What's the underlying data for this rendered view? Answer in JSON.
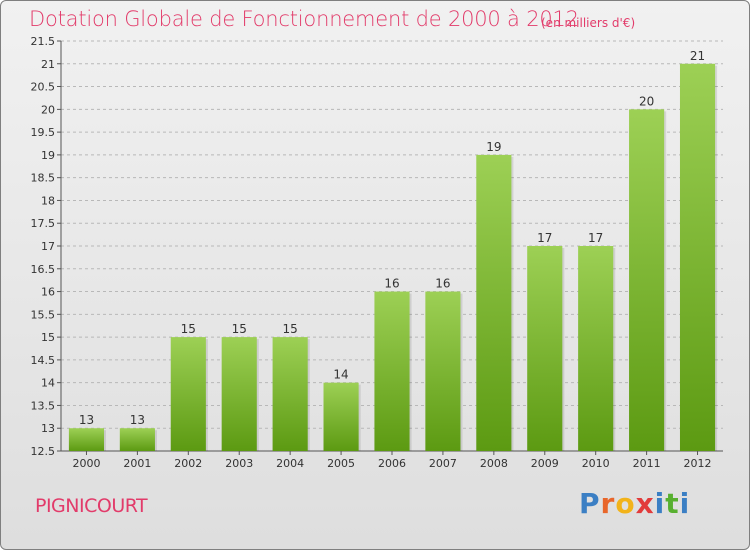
{
  "header": {
    "title": "Dotation Globale de Fonctionnement de 2000 à 2012",
    "subtitle": "(en milliers d'€)"
  },
  "footer": {
    "commune": "PIGNICOURT",
    "logo_letters": [
      "P",
      "r",
      "o",
      "x",
      "i",
      "t",
      "i"
    ]
  },
  "colors": {
    "title": "#e23b6a",
    "bar_top": "#9dd055",
    "bar_bottom": "#5c9a12",
    "logo": [
      "#3b7fc4",
      "#e8662a",
      "#f2b31a",
      "#e23b3b",
      "#3b7fc4",
      "#58b030",
      "#3b7fc4"
    ]
  },
  "chart_data": {
    "type": "bar",
    "title": "Dotation Globale de Fonctionnement de 2000 à 2012",
    "subtitle": "(en milliers d'€)",
    "categories": [
      "2000",
      "2001",
      "2002",
      "2003",
      "2004",
      "2005",
      "2006",
      "2007",
      "2008",
      "2009",
      "2010",
      "2011",
      "2012"
    ],
    "values": [
      13,
      13,
      15,
      15,
      15,
      14,
      16,
      16,
      19,
      17,
      17,
      20,
      21
    ],
    "data_labels": [
      "13",
      "13",
      "15",
      "15",
      "15",
      "14",
      "16",
      "16",
      "19",
      "17",
      "17",
      "20",
      "21"
    ],
    "ylim": [
      12.5,
      21.5
    ],
    "yticks": [
      "12.5",
      "13",
      "13.5",
      "14",
      "14.5",
      "15",
      "15.5",
      "16",
      "16.5",
      "17",
      "17.5",
      "18",
      "18.5",
      "19",
      "19.5",
      "20",
      "20.5",
      "21",
      "21.5"
    ],
    "xlabel": "",
    "ylabel": "",
    "grid": "dashed horizontal",
    "legend": "none"
  }
}
